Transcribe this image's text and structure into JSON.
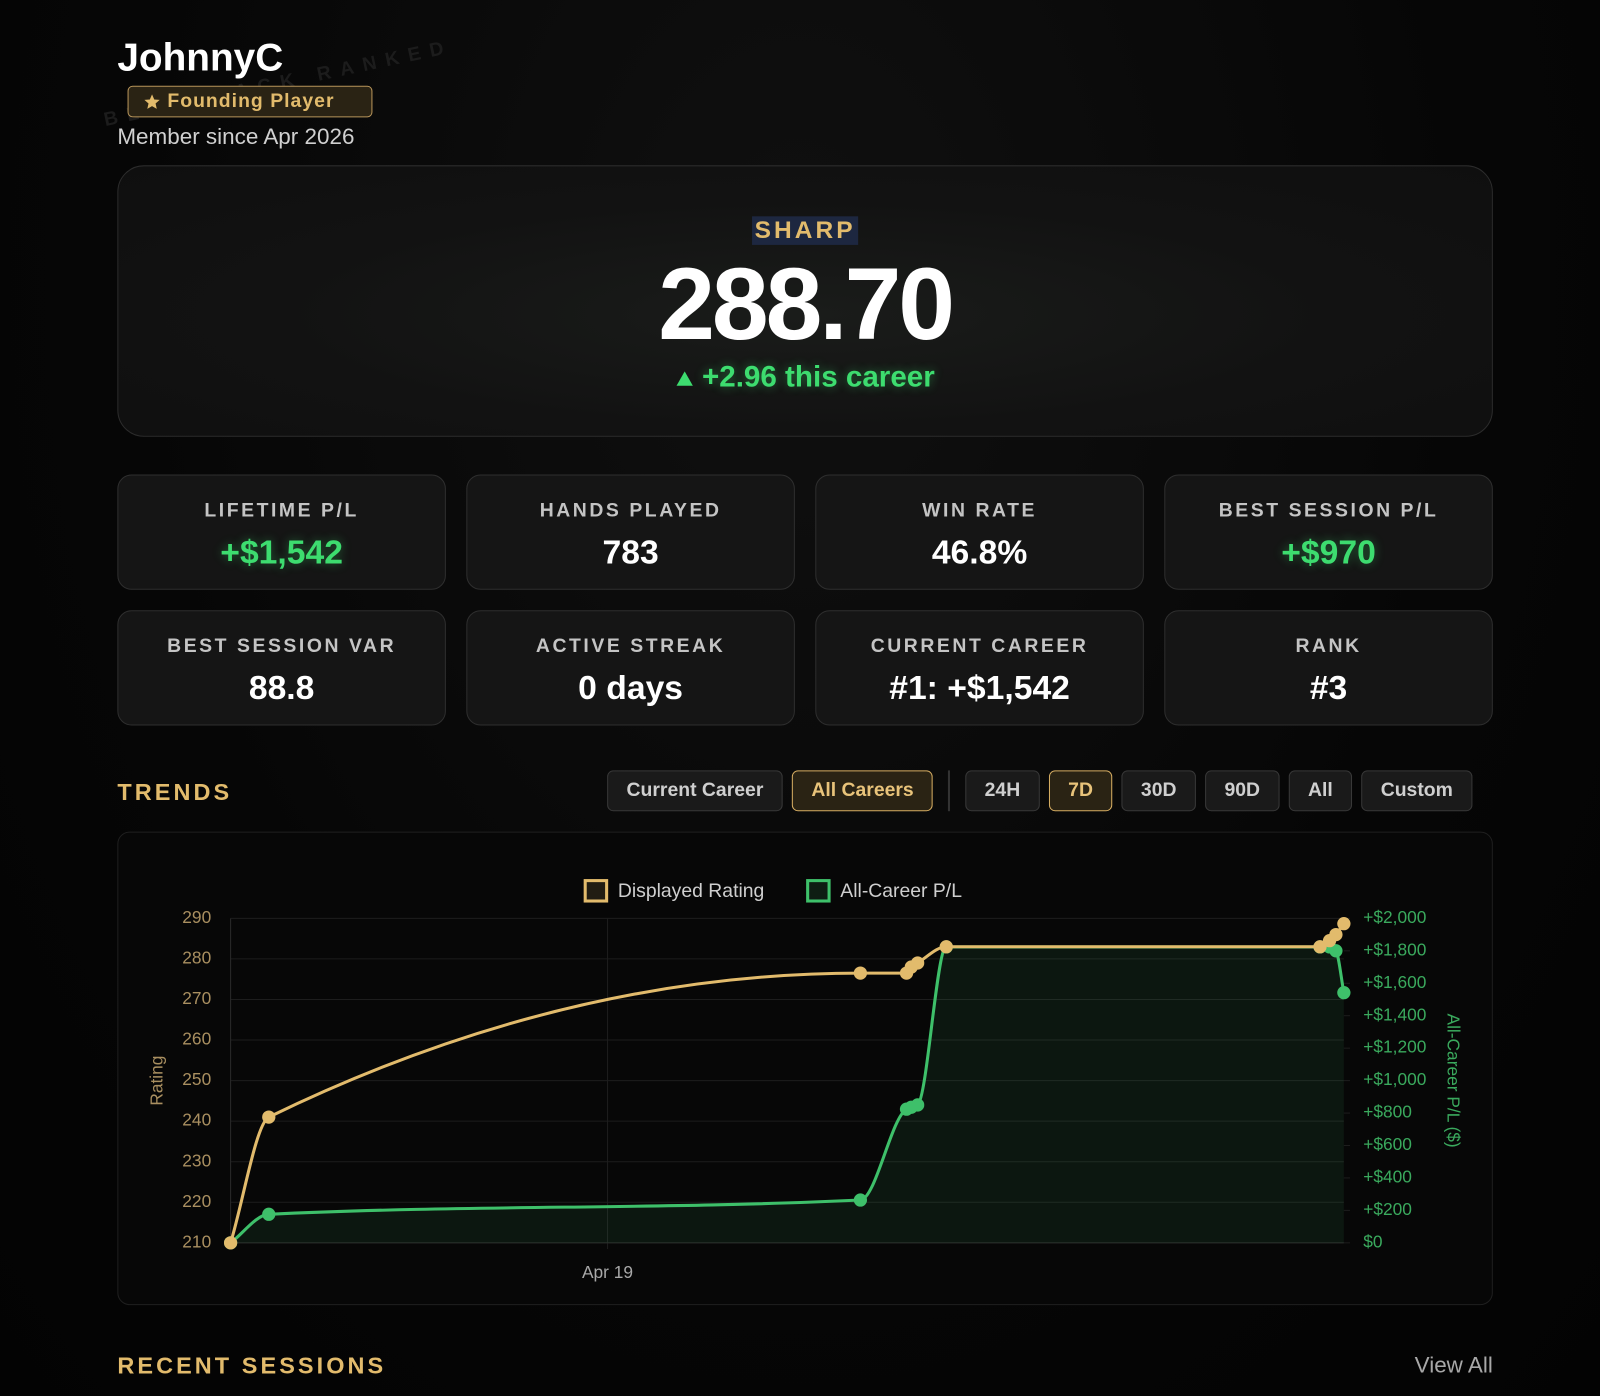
{
  "header": {
    "name": "JohnnyC",
    "badge": "Founding Player",
    "member_since": "Member since Apr 2026",
    "watermark": "BLACKJACK RANKED"
  },
  "hero": {
    "tier": "SHARP",
    "rating": "288.70",
    "change": "+2.96 this career"
  },
  "stats": [
    {
      "label": "LIFETIME P/L",
      "value": "+$1,542",
      "color": "#3ddc6f"
    },
    {
      "label": "HANDS PLAYED",
      "value": "783",
      "color": "#ffffff"
    },
    {
      "label": "WIN RATE",
      "value": "46.8%",
      "color": "#ffffff"
    },
    {
      "label": "BEST SESSION P/L",
      "value": "+$970",
      "color": "#3ddc6f"
    },
    {
      "label": "BEST SESSION VAR",
      "value": "88.8",
      "color": "#ffffff"
    },
    {
      "label": "ACTIVE STREAK",
      "value": "0 days",
      "color": "#ffffff"
    },
    {
      "label": "CURRENT CAREER",
      "value": "#1: +$1,542",
      "color": "#ffffff"
    },
    {
      "label": "RANK",
      "value": "#3",
      "color": "#ffffff"
    }
  ],
  "trends": {
    "title": "TRENDS",
    "career_filters": [
      {
        "label": "Current Career",
        "active": false
      },
      {
        "label": "All Careers",
        "active": true
      }
    ],
    "range_filters": [
      {
        "label": "24H",
        "active": false
      },
      {
        "label": "7D",
        "active": true
      },
      {
        "label": "30D",
        "active": false
      },
      {
        "label": "90D",
        "active": false
      },
      {
        "label": "All",
        "active": false
      },
      {
        "label": "Custom",
        "active": false
      }
    ]
  },
  "chart_data": {
    "type": "line",
    "ylabel": "Rating",
    "y2label": "All-Career P/L ($)",
    "legend": "top",
    "grid": true,
    "x": [
      16.63,
      16.87,
      20.59,
      20.88,
      20.91,
      20.95,
      21.13,
      23.48,
      23.54,
      23.58,
      23.63
    ],
    "xlim": [
      16.63,
      23.63
    ],
    "xticks": [
      {
        "value": 19,
        "label": "Apr 19"
      }
    ],
    "ylim": [
      210,
      290
    ],
    "yticks": [
      210,
      220,
      230,
      240,
      250,
      260,
      270,
      280,
      290
    ],
    "y2lim": [
      0,
      2000
    ],
    "y2ticks": [
      {
        "value": 0,
        "label": "$0"
      },
      {
        "value": 200,
        "label": "+$200"
      },
      {
        "value": 400,
        "label": "+$400"
      },
      {
        "value": 600,
        "label": "+$600"
      },
      {
        "value": 800,
        "label": "+$800"
      },
      {
        "value": 1000,
        "label": "+$1,000"
      },
      {
        "value": 1200,
        "label": "+$1,200"
      },
      {
        "value": 1400,
        "label": "+$1,400"
      },
      {
        "value": 1600,
        "label": "+$1,600"
      },
      {
        "value": 1800,
        "label": "+$1,800"
      },
      {
        "value": 2000,
        "label": "+$2,000"
      }
    ],
    "series": [
      {
        "name": "Displayed Rating",
        "color": "#e2bb6c",
        "axis": "y",
        "fill": false,
        "values": [
          210,
          241,
          276.5,
          276.5,
          278,
          279,
          283,
          283,
          284.5,
          286,
          288.7
        ]
      },
      {
        "name": "All-Career P/L",
        "color": "#3ec06a",
        "axis": "y2",
        "fill": true,
        "values": [
          0,
          176,
          264,
          824,
          836,
          850,
          1824,
          1824,
          1824,
          1800,
          1542
        ]
      }
    ]
  },
  "recent_sessions": {
    "title": "RECENT SESSIONS",
    "link": "View All"
  }
}
